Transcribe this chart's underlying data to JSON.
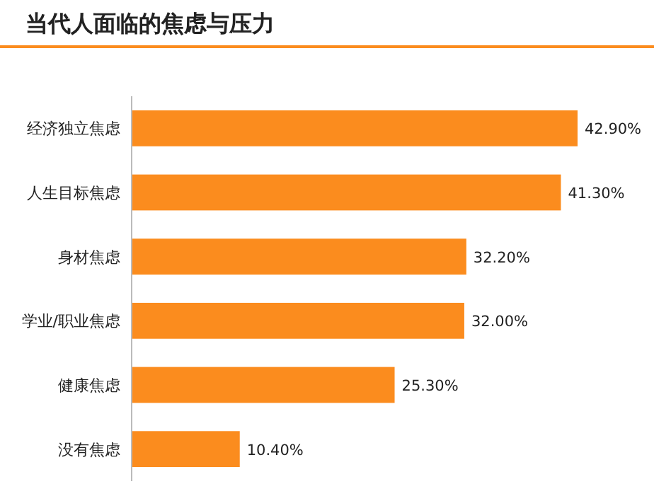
{
  "chart_data": {
    "type": "bar",
    "orientation": "horizontal",
    "title": "当代人面临的焦虑与压力",
    "categories": [
      "经济独立焦虑",
      "人生目标焦虑",
      "身材焦虑",
      "学业/职业焦虑",
      "健康焦虑",
      "没有焦虑"
    ],
    "values": [
      42.9,
      41.3,
      32.2,
      32.0,
      25.3,
      10.4
    ],
    "value_labels": [
      "42.90%",
      "41.30%",
      "32.20%",
      "32.00%",
      "25.30%",
      "10.40%"
    ],
    "color": "#fb8c1e"
  }
}
